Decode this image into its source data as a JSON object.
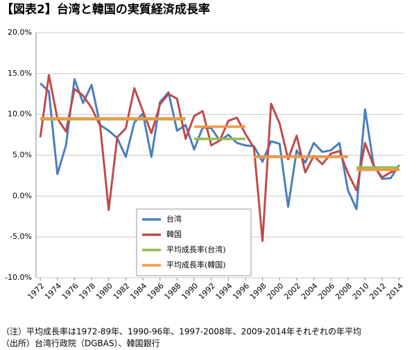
{
  "chart_data": {
    "type": "line",
    "title": "【図表2】台湾と韓国の実質経済成長率",
    "x": [
      1972,
      1973,
      1974,
      1975,
      1976,
      1977,
      1978,
      1979,
      1980,
      1981,
      1982,
      1983,
      1984,
      1985,
      1986,
      1987,
      1988,
      1989,
      1990,
      1991,
      1992,
      1993,
      1994,
      1995,
      1996,
      1997,
      1998,
      1999,
      2000,
      2001,
      2002,
      2003,
      2004,
      2005,
      2006,
      2007,
      2008,
      2009,
      2010,
      2011,
      2012,
      2013,
      2014
    ],
    "xlim": [
      1971.5,
      2014.5
    ],
    "xticks": [
      1972,
      1974,
      1976,
      1978,
      1980,
      1982,
      1984,
      1986,
      1988,
      1990,
      1992,
      1994,
      1996,
      1998,
      2000,
      2002,
      2004,
      2006,
      2008,
      2010,
      2012,
      2014
    ],
    "ylim": [
      -10,
      20
    ],
    "yticks": [
      {
        "value": -10,
        "label": "-10.0%"
      },
      {
        "value": -5,
        "label": "-5.0%"
      },
      {
        "value": 0,
        "label": "0.0%"
      },
      {
        "value": 5,
        "label": "5.0%"
      },
      {
        "value": 10,
        "label": "10.0%"
      },
      {
        "value": 15,
        "label": "15.0%"
      },
      {
        "value": 20,
        "label": "20.0%"
      }
    ],
    "grid": true,
    "series": [
      {
        "name": "台湾",
        "color": "#4a7ebb",
        "values": [
          13.8,
          12.8,
          2.7,
          6.2,
          14.3,
          11.4,
          13.6,
          8.7,
          8.0,
          7.1,
          4.8,
          9.0,
          10.1,
          4.8,
          11.5,
          12.7,
          8.0,
          8.7,
          5.7,
          8.4,
          8.3,
          6.8,
          7.5,
          6.5,
          6.2,
          6.1,
          4.2,
          6.7,
          6.4,
          -1.3,
          5.6,
          4.1,
          6.5,
          5.4,
          5.6,
          6.5,
          0.7,
          -1.6,
          10.6,
          3.8,
          2.1,
          2.2,
          3.8
        ]
      },
      {
        "name": "韓国",
        "color": "#be4b48",
        "values": [
          7.2,
          14.8,
          9.5,
          7.9,
          13.1,
          12.3,
          10.8,
          8.6,
          -1.7,
          7.2,
          8.3,
          13.2,
          10.4,
          7.7,
          11.2,
          12.5,
          11.9,
          7.0,
          9.8,
          10.4,
          6.2,
          6.8,
          9.2,
          9.6,
          7.6,
          5.9,
          -5.5,
          11.3,
          8.9,
          4.5,
          7.4,
          2.9,
          4.9,
          3.9,
          5.2,
          5.5,
          2.8,
          0.7,
          6.5,
          3.7,
          2.3,
          2.9,
          3.3
        ]
      },
      {
        "name": "平均成長率(台湾)",
        "color": "#98b954",
        "segments": [
          {
            "start": 1972,
            "end": 1989,
            "value": 9.4
          },
          {
            "start": 1990,
            "end": 1996,
            "value": 7.0
          },
          {
            "start": 1997,
            "end": 2008,
            "value": 4.8
          },
          {
            "start": 2009,
            "end": 2014,
            "value": 3.5
          }
        ]
      },
      {
        "name": "平均成長率(韓国)",
        "color": "#f79646",
        "segments": [
          {
            "start": 1972,
            "end": 1989,
            "value": 9.5
          },
          {
            "start": 1990,
            "end": 1996,
            "value": 8.5
          },
          {
            "start": 1997,
            "end": 2008,
            "value": 4.8
          },
          {
            "start": 2009,
            "end": 2014,
            "value": 3.2
          }
        ]
      }
    ],
    "notes": [
      "（注）平均成長率は1972-89年、1990-96年、1997-2008年、2009-2014年それぞれの年平均",
      "（出所）台湾行政院（DGBAS）、韓国銀行"
    ]
  }
}
